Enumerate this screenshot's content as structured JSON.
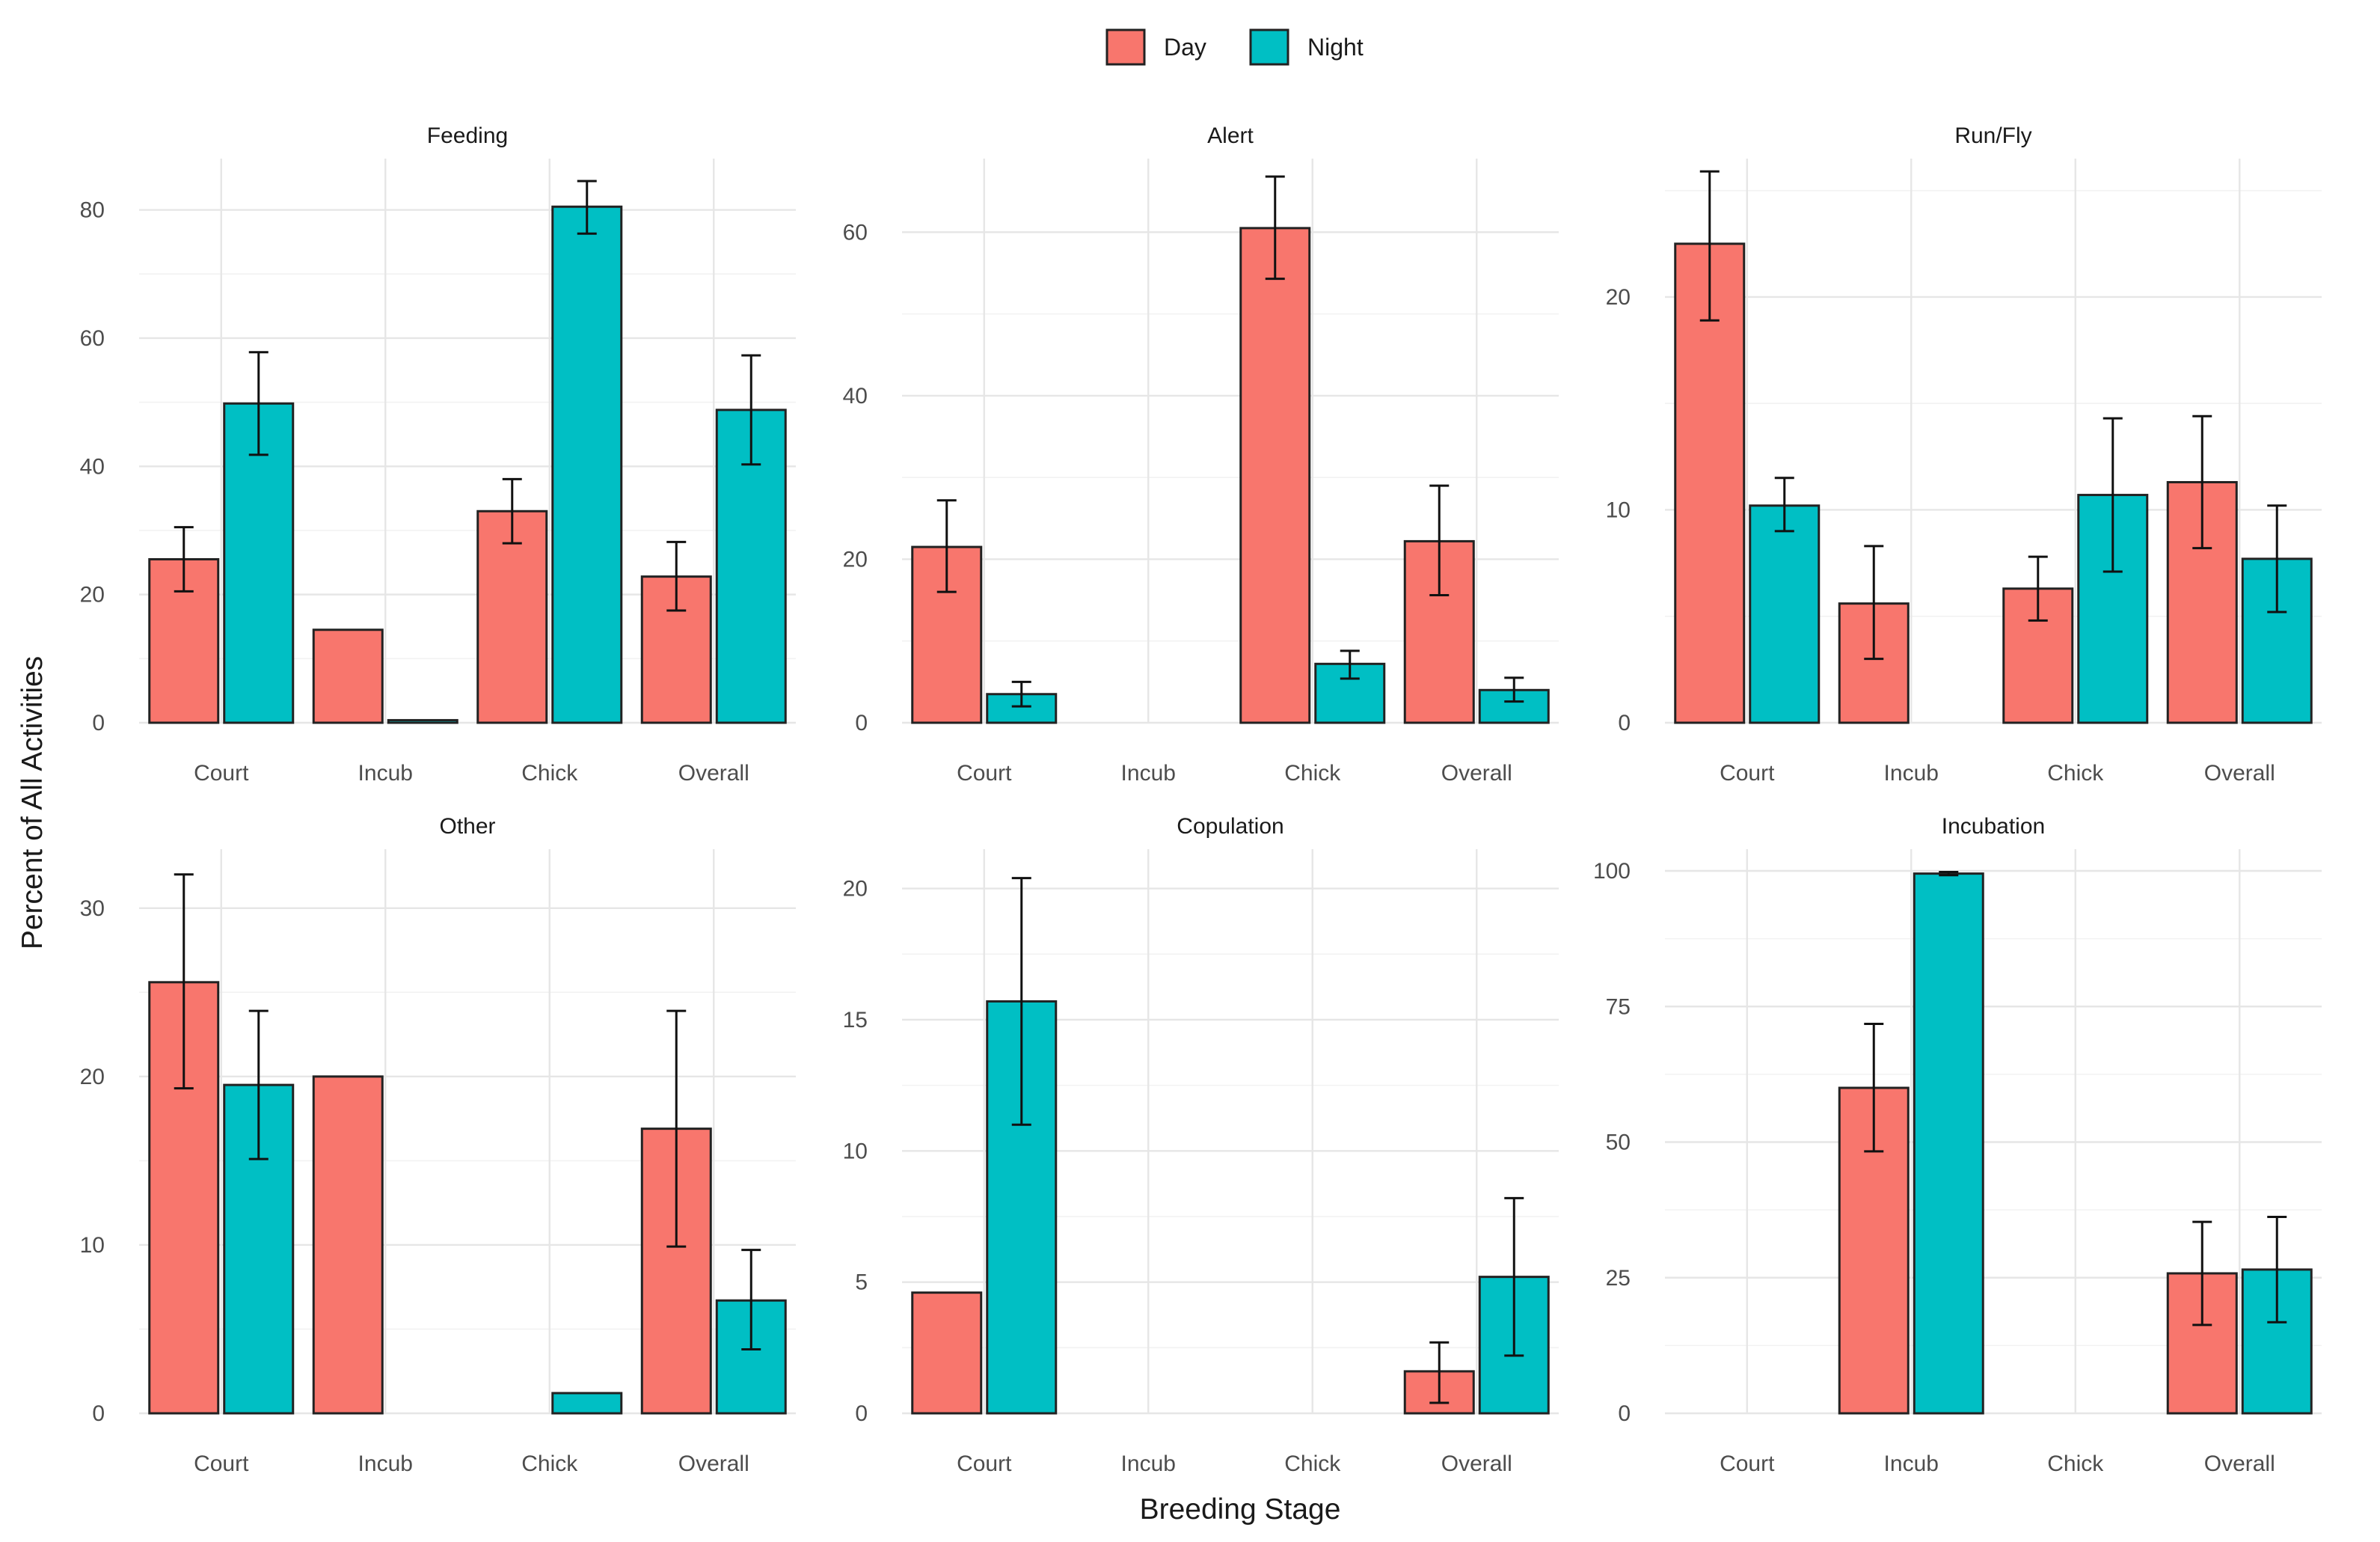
{
  "chart_data": {
    "type": "bar",
    "xlabel": "Breeding Stage",
    "ylabel": "Percent of All Activities",
    "legend": {
      "position": "top",
      "entries": [
        {
          "name": "Day",
          "color": "#F8766D"
        },
        {
          "name": "Night",
          "color": "#00BFC4"
        }
      ]
    },
    "categories": [
      "Court",
      "Incub",
      "Chick",
      "Overall"
    ],
    "panels": [
      {
        "title": "Feeding",
        "ylim": [
          0,
          88
        ],
        "yticks": [
          0,
          20,
          40,
          60,
          80
        ],
        "series": [
          {
            "name": "Day",
            "values": [
              25.5,
              14.5,
              33,
              22.8
            ],
            "errors": [
              [
                20.5,
                30.5
              ],
              null,
              [
                28,
                38
              ],
              [
                17.5,
                28.2
              ]
            ]
          },
          {
            "name": "Night",
            "values": [
              49.8,
              0.4,
              80.5,
              48.8
            ],
            "errors": [
              [
                41.8,
                57.8
              ],
              null,
              [
                76.3,
                84.5
              ],
              [
                40.3,
                57.3
              ]
            ]
          }
        ]
      },
      {
        "title": "Alert",
        "ylim": [
          0,
          69
        ],
        "yticks": [
          0,
          20,
          40,
          60
        ],
        "series": [
          {
            "name": "Day",
            "values": [
              21.5,
              null,
              60.5,
              22.2
            ],
            "errors": [
              [
                16,
                27.2
              ],
              null,
              [
                54.3,
                66.8
              ],
              [
                15.6,
                29
              ]
            ]
          },
          {
            "name": "Night",
            "values": [
              3.5,
              null,
              7.2,
              4
            ],
            "errors": [
              [
                2,
                5
              ],
              null,
              [
                5.4,
                8.8
              ],
              [
                2.6,
                5.5
              ]
            ]
          }
        ]
      },
      {
        "title": "Run/Fly",
        "ylim": [
          0,
          26.5
        ],
        "yticks": [
          0,
          10,
          20
        ],
        "series": [
          {
            "name": "Day",
            "values": [
              22.5,
              5.6,
              6.3,
              11.3
            ],
            "errors": [
              [
                18.9,
                25.9
              ],
              [
                3,
                8.3
              ],
              [
                4.8,
                7.8
              ],
              [
                8.2,
                14.4
              ]
            ]
          },
          {
            "name": "Night",
            "values": [
              10.2,
              null,
              10.7,
              7.7
            ],
            "errors": [
              [
                9,
                11.5
              ],
              null,
              [
                7.1,
                14.3
              ],
              [
                5.2,
                10.2
              ]
            ]
          }
        ]
      },
      {
        "title": "Other",
        "ylim": [
          0,
          33.5
        ],
        "yticks": [
          0,
          10,
          20,
          30
        ],
        "series": [
          {
            "name": "Day",
            "values": [
              25.6,
              20,
              null,
              16.9
            ],
            "errors": [
              [
                19.3,
                32
              ],
              null,
              null,
              [
                9.9,
                23.9
              ]
            ]
          },
          {
            "name": "Night",
            "values": [
              19.5,
              null,
              1.2,
              6.7
            ],
            "errors": [
              [
                15.1,
                23.9
              ],
              null,
              null,
              [
                3.8,
                9.7
              ]
            ]
          }
        ]
      },
      {
        "title": "Copulation",
        "ylim": [
          0,
          21.5
        ],
        "yticks": [
          0,
          5,
          10,
          15,
          20
        ],
        "series": [
          {
            "name": "Day",
            "values": [
              4.6,
              null,
              null,
              1.6
            ],
            "errors": [
              null,
              null,
              null,
              [
                0.4,
                2.7
              ]
            ]
          },
          {
            "name": "Night",
            "values": [
              15.7,
              null,
              null,
              5.2
            ],
            "errors": [
              [
                11,
                20.4
              ],
              null,
              null,
              [
                2.2,
                8.2
              ]
            ]
          }
        ]
      },
      {
        "title": "Incubation",
        "ylim": [
          0,
          104
        ],
        "yticks": [
          0,
          25,
          50,
          75,
          100
        ],
        "series": [
          {
            "name": "Day",
            "values": [
              null,
              60,
              null,
              25.8
            ],
            "errors": [
              null,
              [
                48.3,
                71.8
              ],
              null,
              [
                16.3,
                35.3
              ]
            ]
          },
          {
            "name": "Night",
            "values": [
              null,
              99.5,
              null,
              26.5
            ],
            "errors": [
              null,
              [
                99.2,
                99.8
              ],
              null,
              [
                16.8,
                36.2
              ]
            ]
          }
        ]
      }
    ]
  }
}
